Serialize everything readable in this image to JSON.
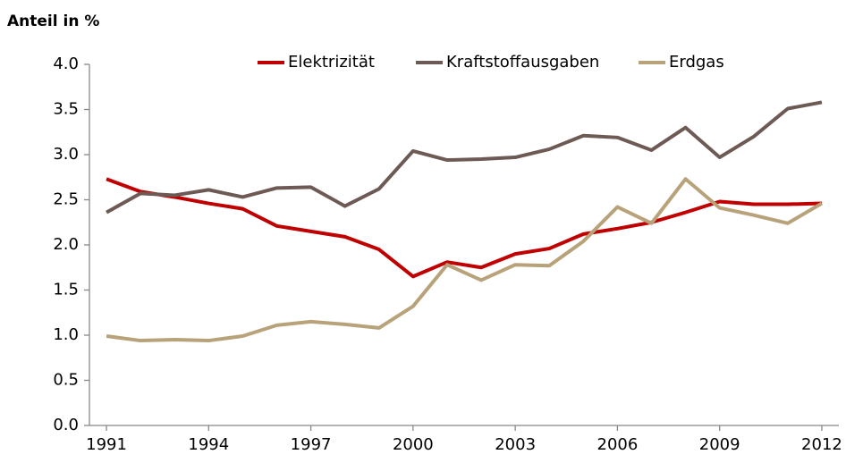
{
  "chart_data": {
    "type": "line",
    "y_label": "Anteil in %",
    "x": [
      1991,
      1992,
      1993,
      1994,
      1995,
      1996,
      1997,
      1998,
      1999,
      2000,
      2001,
      2002,
      2003,
      2004,
      2005,
      2006,
      2007,
      2008,
      2009,
      2010,
      2011,
      2012
    ],
    "series": [
      {
        "name": "Elektrizität",
        "color": "#c00000",
        "values": [
          2.73,
          2.59,
          2.53,
          2.46,
          2.4,
          2.21,
          2.15,
          2.09,
          1.95,
          1.65,
          1.81,
          1.75,
          1.9,
          1.96,
          2.12,
          2.18,
          2.25,
          2.36,
          2.48,
          2.45,
          2.45,
          2.46
        ]
      },
      {
        "name": "Kraftstoffausgaben",
        "color": "#6e5a55",
        "values": [
          2.36,
          2.57,
          2.55,
          2.61,
          2.53,
          2.63,
          2.64,
          2.43,
          2.62,
          3.04,
          2.94,
          2.95,
          2.97,
          3.06,
          3.21,
          3.19,
          3.05,
          3.3,
          2.97,
          3.2,
          3.51,
          3.58
        ]
      },
      {
        "name": "Erdgas",
        "color": "#b8a27a",
        "values": [
          0.99,
          0.94,
          0.95,
          0.94,
          0.99,
          1.11,
          1.15,
          1.12,
          1.08,
          1.32,
          1.78,
          1.61,
          1.78,
          1.77,
          2.04,
          2.42,
          2.24,
          2.73,
          2.41,
          2.33,
          2.24,
          2.46
        ]
      }
    ],
    "xlim": [
      1990.5,
      2012.5
    ],
    "xticks": [
      1991,
      1994,
      1997,
      2000,
      2003,
      2006,
      2009,
      2012
    ],
    "ylim": [
      0,
      4
    ],
    "yticks": [
      {
        "value": 0,
        "label": "0.0"
      },
      0.5,
      {
        "value": 1,
        "label": "1.0"
      },
      1.5,
      {
        "value": 2,
        "label": "2.0"
      },
      2.5,
      {
        "value": 3,
        "label": "3.0"
      },
      3.5,
      {
        "value": 4,
        "label": "4.0"
      }
    ],
    "legend": "top"
  }
}
